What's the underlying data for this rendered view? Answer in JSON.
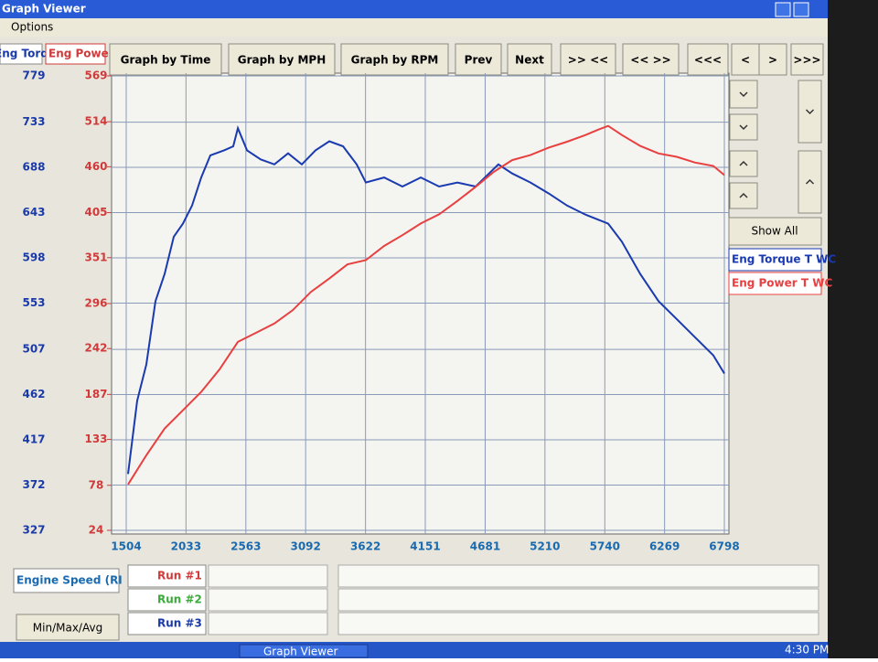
{
  "window": {
    "title": "Graph Viewer",
    "menu": [
      "Options"
    ]
  },
  "toolbar": [
    "Graph by Time",
    "Graph by MPH",
    "Graph by RPM",
    "Prev",
    "Next",
    ">> <<",
    "<< >>",
    "<<<",
    "<",
    ">",
    ">>>"
  ],
  "side_panel": {
    "button": "Show All"
  },
  "runs": [
    {
      "label": "Run #1",
      "color": "#d03a3a"
    },
    {
      "label": "Run #2",
      "color": "#3aaa3a"
    },
    {
      "label": "Run #3",
      "color": "#1a3aa8"
    }
  ],
  "stats_button": "Min/Max/Avg",
  "taskbar": {
    "task": "Graph Viewer",
    "clock": "4:30 PM"
  },
  "chart_data": {
    "type": "line",
    "xlabel": "Engine Speed (RI",
    "ylabel": "Eng Torq",
    "y2label": "Eng Powe",
    "xlim": [
      1504,
      6798
    ],
    "xticks": [
      1504,
      2033,
      2563,
      3092,
      3622,
      4151,
      4681,
      5210,
      5740,
      6269,
      6798
    ],
    "ylim": [
      327,
      779
    ],
    "yticks": [
      327,
      372,
      417,
      462,
      507,
      553,
      598,
      643,
      688,
      733,
      779
    ],
    "y2lim": [
      24,
      569
    ],
    "y2ticks": [
      24,
      78,
      133,
      187,
      242,
      296,
      351,
      405,
      460,
      514,
      569
    ],
    "grid": true,
    "series": [
      {
        "name": "Eng Torque T WC",
        "color": "#1a3ab0",
        "axis": "y",
        "x": [
          1520,
          1601,
          1682,
          1763,
          1844,
          1925,
          2006,
          2087,
          2168,
          2249,
          2370,
          2451,
          2492,
          2573,
          2694,
          2815,
          2937,
          3058,
          3180,
          3302,
          3423,
          3544,
          3625,
          3787,
          3949,
          4111,
          4273,
          4435,
          4597,
          4798,
          4920,
          5082,
          5244,
          5406,
          5568,
          5770,
          5891,
          6053,
          6215,
          6377,
          6539,
          6701,
          6798
        ],
        "values": [
          383,
          456,
          492,
          555,
          582,
          619,
          632,
          650,
          678,
          700,
          705,
          709,
          727,
          705,
          696,
          691,
          702,
          691,
          705,
          714,
          709,
          691,
          673,
          678,
          669,
          678,
          669,
          673,
          669,
          691,
          682,
          673,
          662,
          650,
          641,
          632,
          614,
          582,
          555,
          537,
          519,
          501,
          483
        ]
      },
      {
        "name": "Eng Power T WC",
        "color": "#e84040",
        "axis": "y2",
        "x": [
          1520,
          1682,
          1844,
          2006,
          2168,
          2330,
          2492,
          2654,
          2815,
          2977,
          3139,
          3302,
          3463,
          3625,
          3787,
          3949,
          4111,
          4273,
          4435,
          4597,
          4758,
          4920,
          5082,
          5244,
          5406,
          5568,
          5689,
          5770,
          5891,
          6053,
          6215,
          6377,
          6539,
          6701,
          6798
        ],
        "values": [
          79,
          114,
          146,
          168,
          190,
          217,
          250,
          261,
          272,
          288,
          310,
          326,
          343,
          348,
          365,
          378,
          392,
          403,
          419,
          436,
          454,
          468,
          474,
          483,
          490,
          498,
          505,
          509,
          498,
          485,
          476,
          472,
          465,
          461,
          450
        ]
      }
    ]
  }
}
